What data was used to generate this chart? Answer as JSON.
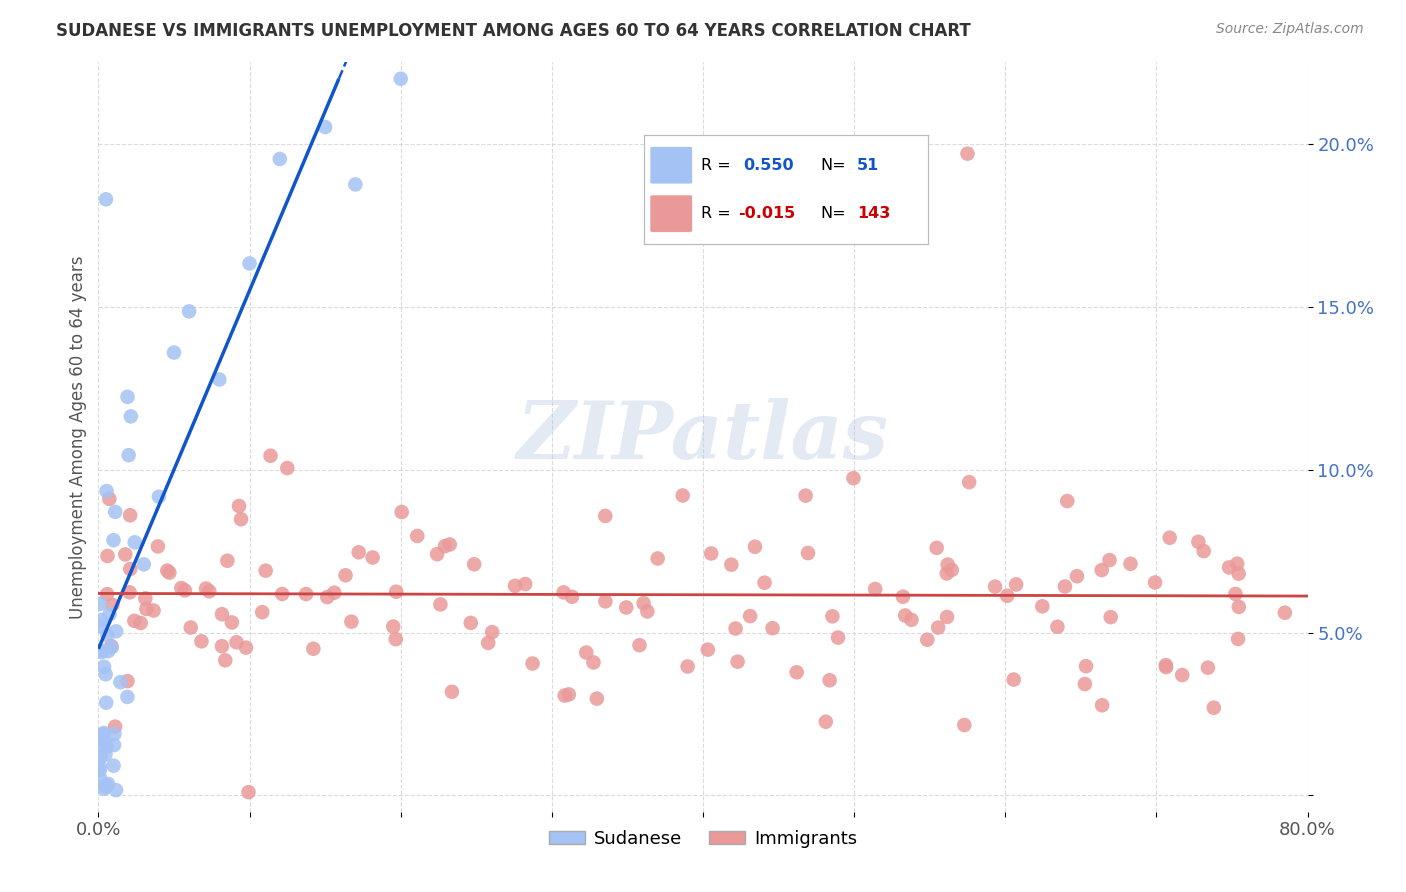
{
  "title": "SUDANESE VS IMMIGRANTS UNEMPLOYMENT AMONG AGES 60 TO 64 YEARS CORRELATION CHART",
  "source": "Source: ZipAtlas.com",
  "ylabel": "Unemployment Among Ages 60 to 64 years",
  "xlim": [
    0,
    0.8
  ],
  "ylim": [
    0.0,
    0.22
  ],
  "blue_R": 0.55,
  "blue_N": 51,
  "pink_R": -0.015,
  "pink_N": 143,
  "blue_color": "#a4c2f4",
  "pink_color": "#ea9999",
  "blue_line_color": "#1155cc",
  "pink_line_color": "#cc4444",
  "grid_color": "#cccccc",
  "ytick_color": "#4472c4"
}
